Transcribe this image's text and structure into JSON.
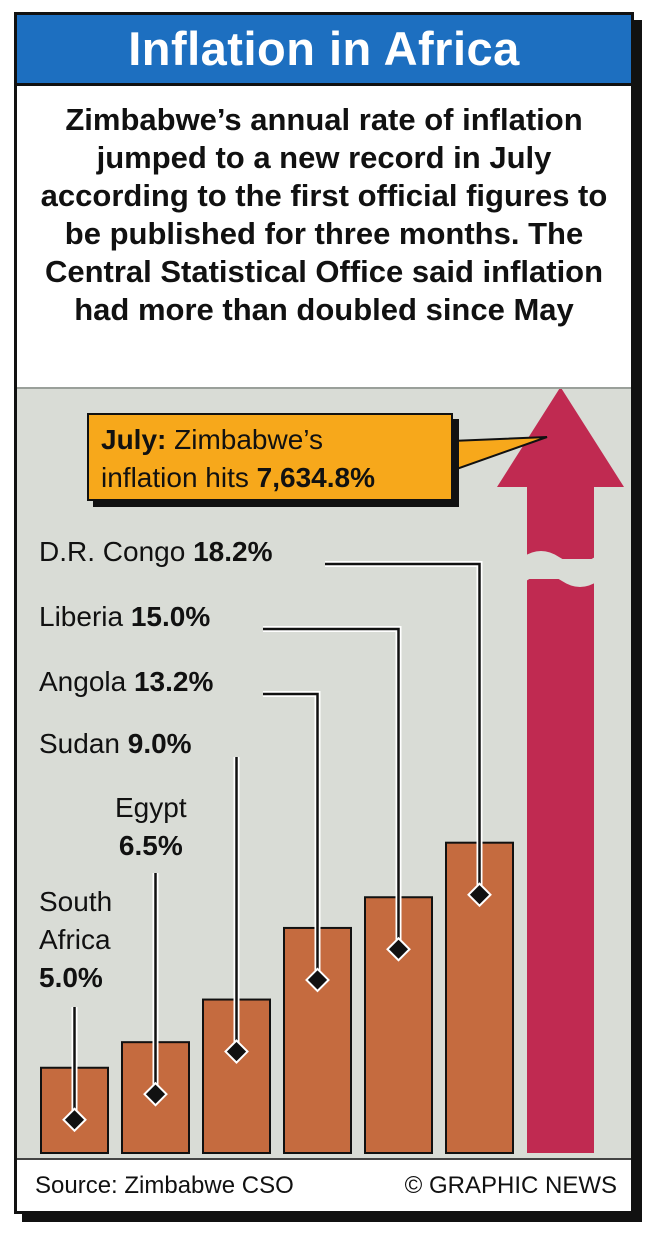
{
  "title": "Inflation in Africa",
  "subtitle": "Zimbabwe’s annual rate of inflation jumped to a new record in July according to the first official figures to be published for three months. The Central Statistical Office said inflation had more than doubled since May",
  "callout": {
    "month": "July:",
    "text_line1": "Zimbabwe’s",
    "text_line2": "inflation hits",
    "value": "7,634.8%"
  },
  "footer": {
    "source": "Source: Zimbabwe CSO",
    "credit": "© GRAPHIC NEWS"
  },
  "colors": {
    "title_bg": "#1d6fc0",
    "bar": "#c56b3f",
    "zimbabwe_arrow": "#c02a51",
    "callout_bg": "#f7a81b",
    "chart_bg": "#d9dcd6"
  },
  "chart_data": {
    "type": "bar",
    "categories": [
      "South Africa",
      "Egypt",
      "Sudan",
      "Angola",
      "Liberia",
      "D.R. Congo",
      "Zimbabwe"
    ],
    "values": [
      5.0,
      6.5,
      9.0,
      13.2,
      15.0,
      18.2,
      7634.8
    ],
    "value_labels": [
      "5.0%",
      "6.5%",
      "9.0%",
      "13.2%",
      "15.0%",
      "18.2%",
      "7,634.8%"
    ],
    "label_lines": [
      [
        "South",
        "Africa"
      ],
      [
        "Egypt"
      ],
      [
        "Sudan"
      ],
      [
        "Angola"
      ],
      [
        "Liberia"
      ],
      [
        "D.R. Congo"
      ],
      []
    ],
    "axis_break": true,
    "grid": false,
    "legend": "none"
  }
}
